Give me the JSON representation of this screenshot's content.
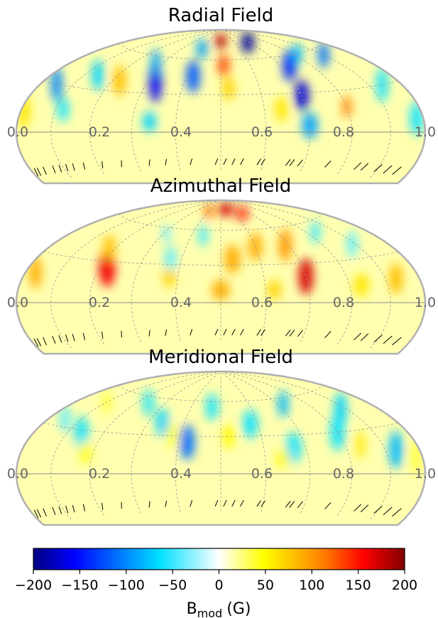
{
  "chart_data": {
    "type": "heatmap",
    "projection": "Hammer-Aitoff (upper hemisphere, visible latitudes)",
    "colormap": "jet",
    "shared_colorbar": {
      "label_main": "B",
      "label_sub": "mod",
      "label_unit": "(G)",
      "range": [
        -200,
        200
      ],
      "ticks": [
        "−200",
        "−150",
        "−100",
        "−50",
        "0",
        "50",
        "100",
        "150",
        "200"
      ],
      "tick_values": [
        -200,
        -150,
        -100,
        -50,
        0,
        50,
        100,
        150,
        200
      ],
      "orientation": "horizontal",
      "placement": "bottom"
    },
    "phase_ticks": [
      "0.0",
      "0.2",
      "0.4",
      "0.6",
      "0.8",
      "1.0"
    ],
    "phase_values": [
      0.0,
      0.2,
      0.4,
      0.6,
      0.8,
      1.0
    ],
    "observed_phases": [
      0.04,
      0.07,
      0.1,
      0.14,
      0.16,
      0.24,
      0.31,
      0.33,
      0.34,
      0.4,
      0.41,
      0.45,
      0.47,
      0.49,
      0.51,
      0.57,
      0.63,
      0.67,
      0.74,
      0.79,
      0.84,
      0.87,
      0.89,
      0.91,
      0.93,
      0.96,
      0.98,
      0.99
    ],
    "panels": [
      {
        "title": "Radial Field",
        "blobs": [
          {
            "phase": 0.31,
            "lat": 75,
            "value": -190,
            "rx": 0.05,
            "ry": 12
          },
          {
            "phase": 0.27,
            "lat": 52,
            "value": -140,
            "rx": 0.025,
            "ry": 14
          },
          {
            "phase": 0.3,
            "lat": 28,
            "value": -170,
            "rx": 0.018,
            "ry": 12
          },
          {
            "phase": 0.3,
            "lat": 5,
            "value": -90,
            "rx": 0.018,
            "ry": 10
          },
          {
            "phase": 0.1,
            "lat": 55,
            "value": -110,
            "rx": 0.03,
            "ry": 12
          },
          {
            "phase": 0.06,
            "lat": 30,
            "value": -60,
            "rx": 0.02,
            "ry": 12
          },
          {
            "phase": 0.18,
            "lat": 60,
            "value": -80,
            "rx": 0.025,
            "ry": 10
          },
          {
            "phase": 0.2,
            "lat": 18,
            "value": 110,
            "rx": 0.012,
            "ry": 8
          },
          {
            "phase": 0.36,
            "lat": 18,
            "value": 60,
            "rx": 0.015,
            "ry": 10
          },
          {
            "phase": 0.5,
            "lat": 78,
            "value": 180,
            "rx": 0.05,
            "ry": 8
          },
          {
            "phase": 0.49,
            "lat": 55,
            "value": 130,
            "rx": 0.02,
            "ry": 10
          },
          {
            "phase": 0.48,
            "lat": 35,
            "value": 70,
            "rx": 0.015,
            "ry": 10
          },
          {
            "phase": 0.58,
            "lat": 45,
            "value": -120,
            "rx": 0.02,
            "ry": 14
          },
          {
            "phase": 0.6,
            "lat": 70,
            "value": -90,
            "rx": 0.03,
            "ry": 10
          },
          {
            "phase": 0.68,
            "lat": 40,
            "value": -160,
            "rx": 0.018,
            "ry": 18
          },
          {
            "phase": 0.66,
            "lat": 8,
            "value": -70,
            "rx": 0.015,
            "ry": 8
          },
          {
            "phase": 0.73,
            "lat": 55,
            "value": -90,
            "rx": 0.018,
            "ry": 12
          },
          {
            "phase": 0.78,
            "lat": 38,
            "value": 80,
            "rx": 0.02,
            "ry": 12
          },
          {
            "phase": 0.86,
            "lat": 40,
            "value": -70,
            "rx": 0.02,
            "ry": 12
          },
          {
            "phase": 0.88,
            "lat": 15,
            "value": -60,
            "rx": 0.015,
            "ry": 8
          },
          {
            "phase": 0.95,
            "lat": 30,
            "value": -100,
            "rx": 0.02,
            "ry": 12
          },
          {
            "phase": 0.99,
            "lat": 12,
            "value": 60,
            "rx": 0.02,
            "ry": 10
          },
          {
            "phase": 0.02,
            "lat": 8,
            "value": -60,
            "rx": 0.02,
            "ry": 10
          }
        ]
      },
      {
        "title": "Azimuthal Field",
        "blobs": [
          {
            "phase": 0.45,
            "lat": 80,
            "value": 170,
            "rx": 0.08,
            "ry": 7
          },
          {
            "phase": 0.35,
            "lat": 75,
            "value": 150,
            "rx": 0.04,
            "ry": 8
          },
          {
            "phase": 0.6,
            "lat": 78,
            "value": 120,
            "rx": 0.04,
            "ry": 8
          },
          {
            "phase": 0.3,
            "lat": 20,
            "value": 170,
            "rx": 0.018,
            "ry": 14
          },
          {
            "phase": 0.31,
            "lat": 45,
            "value": 100,
            "rx": 0.02,
            "ry": 14
          },
          {
            "phase": 0.4,
            "lat": 45,
            "value": 90,
            "rx": 0.02,
            "ry": 12
          },
          {
            "phase": 0.47,
            "lat": 35,
            "value": 90,
            "rx": 0.02,
            "ry": 12
          },
          {
            "phase": 0.38,
            "lat": 10,
            "value": 70,
            "rx": 0.015,
            "ry": 8
          },
          {
            "phase": 0.5,
            "lat": 10,
            "value": 90,
            "rx": 0.02,
            "ry": 8
          },
          {
            "phase": 0.78,
            "lat": 25,
            "value": 160,
            "rx": 0.022,
            "ry": 14
          },
          {
            "phase": 0.82,
            "lat": 40,
            "value": 80,
            "rx": 0.02,
            "ry": 10
          },
          {
            "phase": 0.07,
            "lat": 15,
            "value": 80,
            "rx": 0.02,
            "ry": 10
          },
          {
            "phase": 0.97,
            "lat": 18,
            "value": 90,
            "rx": 0.02,
            "ry": 10
          },
          {
            "phase": 0.17,
            "lat": 12,
            "value": 60,
            "rx": 0.02,
            "ry": 8
          },
          {
            "phase": 0.62,
            "lat": 20,
            "value": 70,
            "rx": 0.015,
            "ry": 8
          },
          {
            "phase": 0.11,
            "lat": 40,
            "value": -40,
            "rx": 0.02,
            "ry": 10
          },
          {
            "phase": 0.17,
            "lat": 52,
            "value": -50,
            "rx": 0.02,
            "ry": 10
          },
          {
            "phase": 0.56,
            "lat": 55,
            "value": -50,
            "rx": 0.015,
            "ry": 10
          },
          {
            "phase": 0.63,
            "lat": 35,
            "value": -40,
            "rx": 0.015,
            "ry": 10
          },
          {
            "phase": 0.69,
            "lat": 55,
            "value": -35,
            "rx": 0.015,
            "ry": 8
          }
        ]
      },
      {
        "title": "Meridional Field",
        "blobs": [
          {
            "phase": 0.07,
            "lat": 15,
            "value": -80,
            "rx": 0.02,
            "ry": 12
          },
          {
            "phase": 0.12,
            "lat": 45,
            "value": -70,
            "rx": 0.025,
            "ry": 14
          },
          {
            "phase": 0.2,
            "lat": 30,
            "value": -60,
            "rx": 0.02,
            "ry": 14
          },
          {
            "phase": 0.28,
            "lat": 55,
            "value": -80,
            "rx": 0.02,
            "ry": 12
          },
          {
            "phase": 0.33,
            "lat": 20,
            "value": -60,
            "rx": 0.018,
            "ry": 12
          },
          {
            "phase": 0.42,
            "lat": 40,
            "value": -60,
            "rx": 0.02,
            "ry": 12
          },
          {
            "phase": 0.58,
            "lat": 25,
            "value": -110,
            "rx": 0.018,
            "ry": 14
          },
          {
            "phase": 0.53,
            "lat": 55,
            "value": -60,
            "rx": 0.02,
            "ry": 12
          },
          {
            "phase": 0.66,
            "lat": 40,
            "value": -70,
            "rx": 0.018,
            "ry": 12
          },
          {
            "phase": 0.76,
            "lat": 55,
            "value": -60,
            "rx": 0.02,
            "ry": 12
          },
          {
            "phase": 0.86,
            "lat": 28,
            "value": -60,
            "rx": 0.02,
            "ry": 12
          },
          {
            "phase": 0.95,
            "lat": 35,
            "value": -40,
            "rx": 0.02,
            "ry": 10
          },
          {
            "phase": 0.16,
            "lat": 20,
            "value": 60,
            "rx": 0.012,
            "ry": 10
          },
          {
            "phase": 0.02,
            "lat": 10,
            "value": 40,
            "rx": 0.015,
            "ry": 10
          },
          {
            "phase": 0.36,
            "lat": 12,
            "value": 50,
            "rx": 0.015,
            "ry": 8
          },
          {
            "phase": 0.48,
            "lat": 30,
            "value": 50,
            "rx": 0.015,
            "ry": 10
          },
          {
            "phase": 0.62,
            "lat": 30,
            "value": 40,
            "rx": 0.015,
            "ry": 10
          },
          {
            "phase": 0.82,
            "lat": 15,
            "value": 50,
            "rx": 0.015,
            "ry": 8
          },
          {
            "phase": 0.9,
            "lat": 50,
            "value": 40,
            "rx": 0.02,
            "ry": 10
          }
        ]
      }
    ]
  }
}
